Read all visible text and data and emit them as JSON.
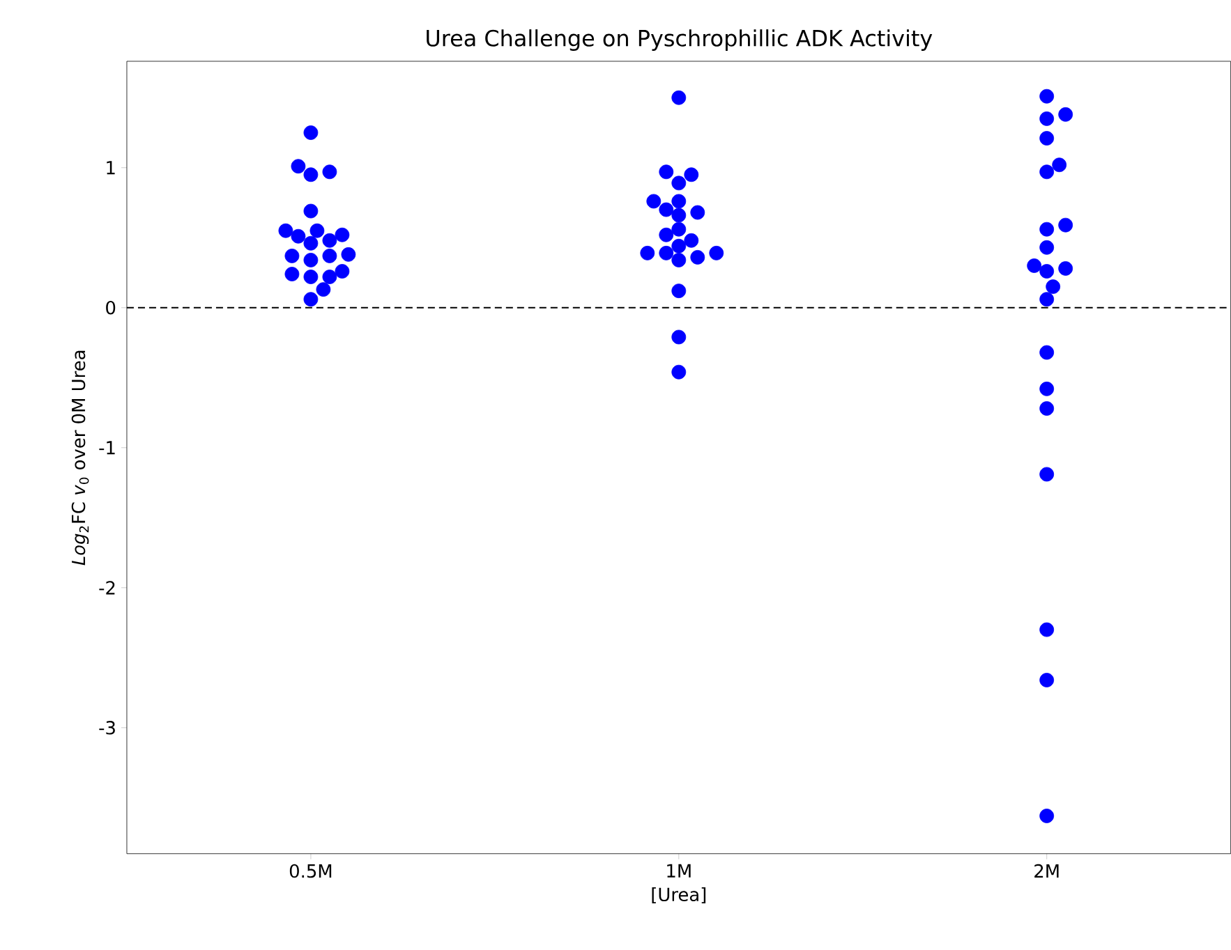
{
  "chart_data": {
    "type": "scatter",
    "title": "Urea Challenge on Pyschrophillic ADK Activity",
    "xlabel": "[Urea]",
    "ylabel": "*Log*$_{2}$FC *v*$_{0}$ over 0M Urea",
    "categories": [
      "0.5M",
      "1M",
      "2M"
    ],
    "series": [
      {
        "color": "#0000ff",
        "x": [
          "0.5M",
          "0.5M",
          "0.5M",
          "0.5M",
          "0.5M",
          "0.5M",
          "0.5M",
          "0.5M",
          "0.5M",
          "0.5M",
          "0.5M",
          "0.5M",
          "0.5M",
          "0.5M",
          "0.5M",
          "0.5M",
          "0.5M",
          "0.5M",
          "0.5M",
          "0.5M",
          "0.5M",
          "1M",
          "1M",
          "1M",
          "1M",
          "1M",
          "1M",
          "1M",
          "1M",
          "1M",
          "1M",
          "1M",
          "1M",
          "1M",
          "1M",
          "1M",
          "1M",
          "1M",
          "1M",
          "1M",
          "1M",
          "1M",
          "2M",
          "2M",
          "2M",
          "2M",
          "2M",
          "2M",
          "2M",
          "2M",
          "2M",
          "2M",
          "2M",
          "2M",
          "2M",
          "2M",
          "2M",
          "2M",
          "2M",
          "2M",
          "2M",
          "2M",
          "2M"
        ],
        "values": [
          1.25,
          0.97,
          0.95,
          1.01,
          0.69,
          0.55,
          0.55,
          0.48,
          0.46,
          0.51,
          0.52,
          0.37,
          0.34,
          0.37,
          0.38,
          0.24,
          0.22,
          0.22,
          0.26,
          0.13,
          0.06,
          1.5,
          0.95,
          0.89,
          0.97,
          0.76,
          0.76,
          0.68,
          0.66,
          0.7,
          0.56,
          0.48,
          0.52,
          0.44,
          0.39,
          0.36,
          0.34,
          0.39,
          0.39,
          0.12,
          -0.21,
          -0.46,
          1.51,
          1.35,
          1.38,
          1.21,
          1.02,
          0.97,
          0.59,
          0.56,
          0.43,
          0.28,
          0.26,
          0.3,
          0.15,
          0.06,
          -0.32,
          -0.58,
          -0.72,
          -1.19,
          -2.3,
          -2.66,
          -3.63
        ]
      }
    ],
    "ylim": [
      -3.9,
      1.76
    ],
    "yticks": [
      -3,
      -2,
      -1,
      0,
      1
    ],
    "ref_lines": [
      {
        "axis": "y",
        "value": 0,
        "color": "#000000",
        "line_style": "dashed"
      }
    ],
    "grid": false
  }
}
